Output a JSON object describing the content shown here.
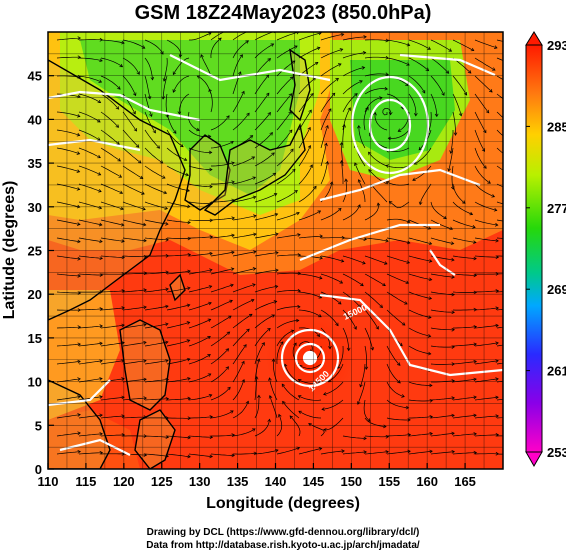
{
  "title": "GSM 18Z24May2023 (850.0hPa)",
  "x_axis": {
    "label": "Longitude (degrees)",
    "ticks": [
      "110",
      "115",
      "120",
      "125",
      "130",
      "135",
      "140",
      "145",
      "150",
      "155",
      "160",
      "165"
    ]
  },
  "y_axis": {
    "label": "Latitude (degrees)",
    "ticks": [
      "0",
      "5",
      "10",
      "15",
      "20",
      "25",
      "30",
      "35",
      "40",
      "45"
    ]
  },
  "colorbar": {
    "ticks": [
      "293",
      "285",
      "277",
      "269",
      "261",
      "253"
    ],
    "colors": [
      "#ff1a00",
      "#ff7a10",
      "#ffd000",
      "#b8f000",
      "#26d80a",
      "#00c98a",
      "#00a8ff",
      "#2a2aff",
      "#c000e0",
      "#ff00c8"
    ]
  },
  "contour_labels": [
    "15000",
    "14500"
  ],
  "credits": {
    "line1": "Drawing by DCL (https://www.gfd-dennou.org/library/dcl/)",
    "line2": "Data from http://database.rish.kyoto-u.ac.jp/arch/jmadata/"
  },
  "map": {
    "lon_range": [
      110,
      170
    ],
    "lat_range": [
      0,
      50
    ],
    "typhoon_center": {
      "lon": 144,
      "lat": 14
    },
    "low_center": {
      "lon": 154.5,
      "lat": 41
    }
  }
}
